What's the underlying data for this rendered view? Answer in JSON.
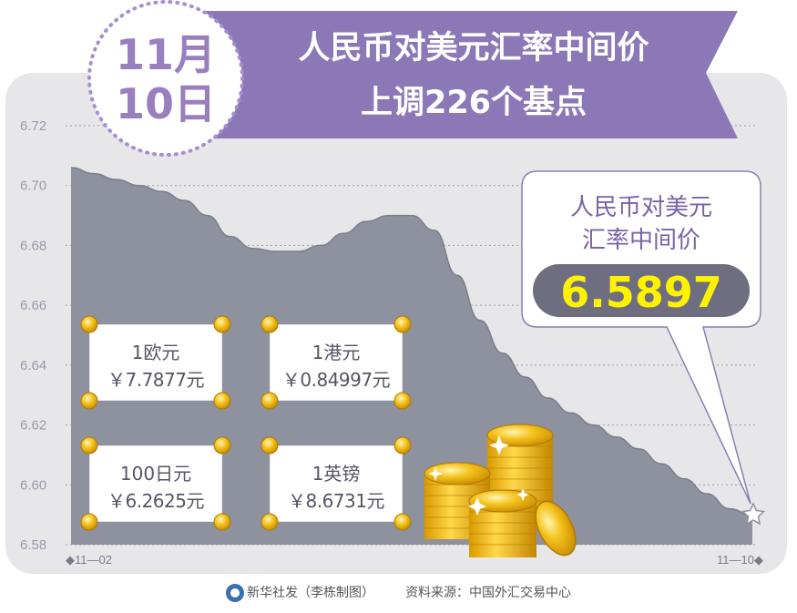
{
  "header": {
    "date_line1": "11月",
    "date_line2": "10日",
    "title_line1": "人民币对美元汇率中间价",
    "title_line2": "上调226个基点"
  },
  "callout": {
    "label_line1": "人民币对美元",
    "label_line2": "汇率中间价",
    "value": "6.5897"
  },
  "chart_data": {
    "type": "area",
    "y_ticks": [
      "6.72",
      "6.70",
      "6.68",
      "6.66",
      "6.64",
      "6.62",
      "6.60",
      "6.58"
    ],
    "ylim": [
      6.58,
      6.72
    ],
    "x_tick_labels": [
      "◆11—02",
      "11—10◆"
    ],
    "grid": "dotted horizontal",
    "series": [
      {
        "values": [
          6.706,
          6.704,
          6.702,
          6.7,
          6.698,
          6.695,
          6.69,
          6.683,
          6.679,
          6.678,
          6.678,
          6.68,
          6.684,
          6.688,
          6.69,
          6.69,
          6.685,
          6.67,
          6.655,
          6.644,
          6.636,
          6.629,
          6.624,
          6.62,
          6.616,
          6.612,
          6.607,
          6.602,
          6.597,
          6.592,
          6.5897
        ]
      }
    ]
  },
  "rates": [
    {
      "label": "1欧元",
      "value": "￥7.7877元"
    },
    {
      "label": "1港元",
      "value": "￥0.84997元"
    },
    {
      "label": "100日元",
      "value": "￥6.2625元"
    },
    {
      "label": "1英镑",
      "value": "￥8.6731元"
    }
  ],
  "footer": {
    "agency": "新华社发（李栋制图）",
    "source": "资料来源：中国外汇交易中心"
  },
  "colors": {
    "area": "#8e919e",
    "panel": "#e7e7ea",
    "banner": "#8d78b7",
    "callout_value_bg": "#6e6e80",
    "callout_value_text": "#fff200",
    "coin": "#e9b200"
  }
}
